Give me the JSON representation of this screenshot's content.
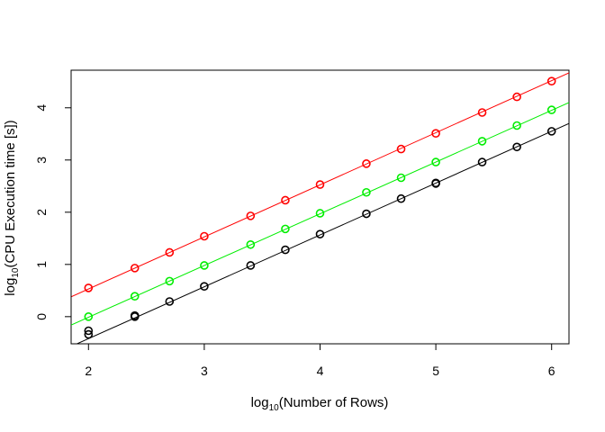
{
  "chart_data": {
    "type": "scatter",
    "title": "",
    "xlabel": {
      "prefix": "log",
      "sub": "10",
      "suffix": "(Number of Rows)"
    },
    "ylabel": {
      "prefix": "log",
      "sub": "10",
      "suffix": "(CPU Execution time [s])"
    },
    "xlim": [
      1.85,
      6.15
    ],
    "ylim": [
      -0.52,
      4.72
    ],
    "xticks": [
      2,
      3,
      4,
      5,
      6
    ],
    "yticks": [
      0,
      1,
      2,
      3,
      4
    ],
    "grid": false,
    "marker": "open-circle",
    "series": [
      {
        "color": "#ff0000",
        "x": [
          2.0,
          2.4,
          2.7,
          3.0,
          3.4,
          3.7,
          4.0,
          4.4,
          4.7,
          5.0,
          5.4,
          5.7,
          6.0
        ],
        "y": [
          0.55,
          0.93,
          1.23,
          1.54,
          1.93,
          2.23,
          2.53,
          2.93,
          3.21,
          3.51,
          3.91,
          4.21,
          4.51
        ],
        "fit": {
          "x": [
            1.85,
            6.15
          ],
          "y": [
            0.38,
            4.67
          ]
        }
      },
      {
        "color": "#00ee00",
        "x": [
          2.0,
          2.4,
          2.7,
          3.0,
          3.4,
          3.7,
          4.0,
          4.4,
          4.7,
          5.0,
          5.4,
          5.7,
          6.0
        ],
        "y": [
          0.0,
          0.39,
          0.68,
          0.98,
          1.38,
          1.68,
          1.98,
          2.38,
          2.66,
          2.96,
          3.36,
          3.66,
          3.96
        ],
        "fit": {
          "x": [
            1.85,
            6.15
          ],
          "y": [
            -0.16,
            4.1
          ]
        }
      },
      {
        "color": "#000000",
        "x": [
          2.0,
          2.0,
          2.4,
          2.4,
          2.7,
          3.0,
          3.4,
          3.7,
          4.0,
          4.4,
          4.7,
          5.0,
          5.0,
          5.4,
          5.7,
          6.0
        ],
        "y": [
          -0.27,
          -0.34,
          0.02,
          0.0,
          0.29,
          0.58,
          0.98,
          1.28,
          1.58,
          1.97,
          2.26,
          2.56,
          2.55,
          2.96,
          3.25,
          3.55
        ],
        "fit": {
          "x": [
            1.85,
            6.15
          ],
          "y": [
            -0.57,
            3.7
          ]
        }
      }
    ]
  }
}
